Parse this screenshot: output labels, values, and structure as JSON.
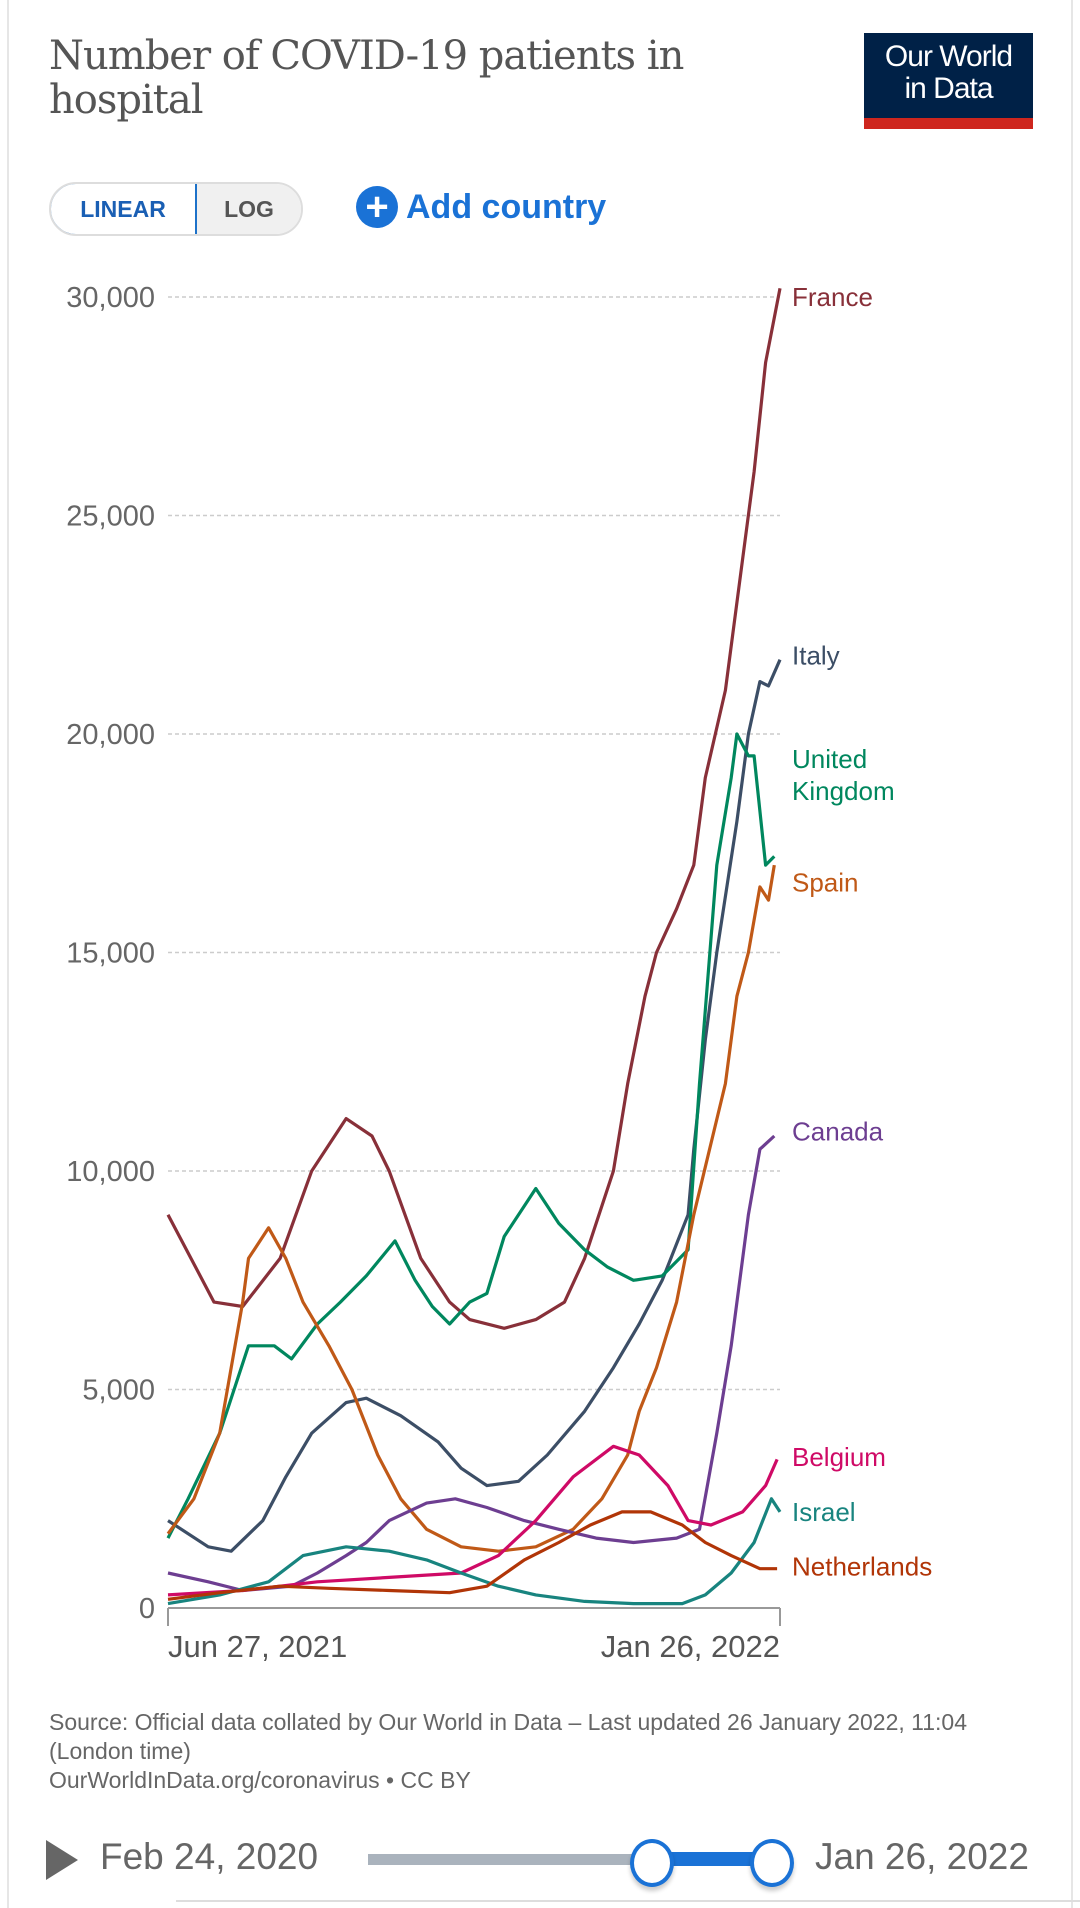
{
  "header": {
    "title": "Number of COVID-19 patients in hospital",
    "logo_line1": "Our World",
    "logo_line2": "in Data"
  },
  "controls": {
    "linear_label": "LINEAR",
    "log_label": "LOG",
    "add_country_label": "Add country",
    "add_icon": "plus-circle-icon"
  },
  "footer": {
    "source": "Source: Official data collated by Our World in Data – Last updated 26 January 2022, 11:04 (London time)",
    "license": "OurWorldInData.org/coronavirus • CC BY"
  },
  "timeline": {
    "start_date": "Feb 24, 2020",
    "end_date": "Jan 26, 2022",
    "play_icon": "play-icon"
  },
  "chart_data": {
    "type": "line",
    "title": "Number of COVID-19 patients in hospital",
    "xlabel": "",
    "ylabel": "",
    "x_unit": "days since Jun 27, 2021",
    "xlim": [
      0,
      213
    ],
    "ylim": [
      0,
      30000
    ],
    "yticks": [
      0,
      5000,
      10000,
      15000,
      20000,
      25000,
      30000
    ],
    "ytick_labels": [
      "0",
      "5,000",
      "10,000",
      "15,000",
      "20,000",
      "25,000",
      "30,000"
    ],
    "xtick_labels": [
      "Jun 27, 2021",
      "Jan 26, 2022"
    ],
    "grid": "horizontal dashed",
    "legend": "inline-right",
    "series": [
      {
        "name": "France",
        "color": "#883039",
        "points": [
          [
            0,
            9000
          ],
          [
            16,
            7000
          ],
          [
            26,
            6900
          ],
          [
            39,
            8000
          ],
          [
            50,
            10000
          ],
          [
            62,
            11200
          ],
          [
            71,
            10800
          ],
          [
            77,
            10000
          ],
          [
            88,
            8000
          ],
          [
            98,
            7000
          ],
          [
            105,
            6600
          ],
          [
            117,
            6400
          ],
          [
            128,
            6600
          ],
          [
            138,
            7000
          ],
          [
            145,
            8000
          ],
          [
            155,
            10000
          ],
          [
            160,
            12000
          ],
          [
            166,
            14000
          ],
          [
            170,
            15000
          ],
          [
            177,
            16000
          ],
          [
            183,
            17000
          ],
          [
            187,
            19000
          ],
          [
            194,
            21000
          ],
          [
            200,
            24000
          ],
          [
            204,
            26000
          ],
          [
            208,
            28500
          ],
          [
            213,
            30200
          ]
        ]
      },
      {
        "name": "Italy",
        "color": "#3c4e66",
        "points": [
          [
            0,
            2000
          ],
          [
            14,
            1400
          ],
          [
            22,
            1300
          ],
          [
            33,
            2000
          ],
          [
            41,
            3000
          ],
          [
            50,
            4000
          ],
          [
            62,
            4700
          ],
          [
            69,
            4800
          ],
          [
            81,
            4400
          ],
          [
            94,
            3800
          ],
          [
            102,
            3200
          ],
          [
            111,
            2800
          ],
          [
            122,
            2900
          ],
          [
            132,
            3500
          ],
          [
            145,
            4500
          ],
          [
            155,
            5500
          ],
          [
            164,
            6500
          ],
          [
            172,
            7500
          ],
          [
            181,
            9000
          ],
          [
            183,
            10500
          ],
          [
            187,
            13000
          ],
          [
            191,
            15000
          ],
          [
            198,
            18000
          ],
          [
            202,
            20000
          ],
          [
            206,
            21200
          ],
          [
            209,
            21100
          ],
          [
            213,
            21700
          ]
        ]
      },
      {
        "name": "United Kingdom",
        "color": "#00875e",
        "points": [
          [
            0,
            1600
          ],
          [
            7,
            2500
          ],
          [
            18,
            4000
          ],
          [
            28,
            6000
          ],
          [
            37,
            6000
          ],
          [
            43,
            5700
          ],
          [
            52,
            6500
          ],
          [
            60,
            7000
          ],
          [
            69,
            7600
          ],
          [
            79,
            8400
          ],
          [
            86,
            7500
          ],
          [
            92,
            6900
          ],
          [
            98,
            6500
          ],
          [
            105,
            7000
          ],
          [
            111,
            7200
          ],
          [
            117,
            8500
          ],
          [
            124,
            9200
          ],
          [
            128,
            9600
          ],
          [
            136,
            8800
          ],
          [
            145,
            8200
          ],
          [
            153,
            7800
          ],
          [
            162,
            7500
          ],
          [
            172,
            7600
          ],
          [
            181,
            8200
          ],
          [
            185,
            12000
          ],
          [
            191,
            17000
          ],
          [
            196,
            19000
          ],
          [
            198,
            20000
          ],
          [
            202,
            19500
          ],
          [
            204,
            19500
          ],
          [
            208,
            17000
          ],
          [
            211,
            17200
          ]
        ]
      },
      {
        "name": "Spain",
        "color": "#c05917",
        "points": [
          [
            0,
            1700
          ],
          [
            9,
            2500
          ],
          [
            18,
            4000
          ],
          [
            26,
            7000
          ],
          [
            28,
            8000
          ],
          [
            35,
            8700
          ],
          [
            41,
            8000
          ],
          [
            47,
            7000
          ],
          [
            56,
            6000
          ],
          [
            64,
            5000
          ],
          [
            73,
            3500
          ],
          [
            81,
            2500
          ],
          [
            90,
            1800
          ],
          [
            102,
            1400
          ],
          [
            115,
            1300
          ],
          [
            128,
            1400
          ],
          [
            141,
            1800
          ],
          [
            151,
            2500
          ],
          [
            160,
            3500
          ],
          [
            164,
            4500
          ],
          [
            170,
            5500
          ],
          [
            177,
            7000
          ],
          [
            183,
            9000
          ],
          [
            194,
            12000
          ],
          [
            198,
            14000
          ],
          [
            202,
            15000
          ],
          [
            206,
            16500
          ],
          [
            209,
            16200
          ],
          [
            211,
            17000
          ]
        ]
      },
      {
        "name": "Canada",
        "color": "#6d3e91",
        "points": [
          [
            0,
            800
          ],
          [
            14,
            600
          ],
          [
            26,
            400
          ],
          [
            43,
            500
          ],
          [
            52,
            800
          ],
          [
            62,
            1200
          ],
          [
            69,
            1500
          ],
          [
            77,
            2000
          ],
          [
            90,
            2400
          ],
          [
            100,
            2500
          ],
          [
            111,
            2300
          ],
          [
            124,
            2000
          ],
          [
            136,
            1800
          ],
          [
            149,
            1600
          ],
          [
            162,
            1500
          ],
          [
            177,
            1600
          ],
          [
            185,
            1800
          ],
          [
            191,
            4000
          ],
          [
            196,
            6000
          ],
          [
            202,
            9000
          ],
          [
            206,
            10500
          ],
          [
            211,
            10800
          ]
        ]
      },
      {
        "name": "Belgium",
        "color": "#cf0a66",
        "points": [
          [
            0,
            300
          ],
          [
            26,
            400
          ],
          [
            52,
            600
          ],
          [
            77,
            700
          ],
          [
            102,
            800
          ],
          [
            115,
            1200
          ],
          [
            128,
            2000
          ],
          [
            141,
            3000
          ],
          [
            155,
            3700
          ],
          [
            164,
            3500
          ],
          [
            174,
            2800
          ],
          [
            181,
            2000
          ],
          [
            189,
            1900
          ],
          [
            200,
            2200
          ],
          [
            208,
            2800
          ],
          [
            212,
            3400
          ]
        ]
      },
      {
        "name": "Israel",
        "color": "#18847f",
        "points": [
          [
            0,
            100
          ],
          [
            18,
            300
          ],
          [
            35,
            600
          ],
          [
            47,
            1200
          ],
          [
            62,
            1400
          ],
          [
            77,
            1300
          ],
          [
            90,
            1100
          ],
          [
            102,
            800
          ],
          [
            115,
            500
          ],
          [
            128,
            300
          ],
          [
            145,
            150
          ],
          [
            162,
            100
          ],
          [
            179,
            100
          ],
          [
            187,
            300
          ],
          [
            196,
            800
          ],
          [
            204,
            1500
          ],
          [
            210,
            2500
          ],
          [
            213,
            2200
          ]
        ]
      },
      {
        "name": "Netherlands",
        "color": "#b13507",
        "points": [
          [
            0,
            200
          ],
          [
            18,
            350
          ],
          [
            39,
            500
          ],
          [
            56,
            450
          ],
          [
            77,
            400
          ],
          [
            98,
            350
          ],
          [
            111,
            500
          ],
          [
            124,
            1100
          ],
          [
            136,
            1500
          ],
          [
            147,
            1900
          ],
          [
            158,
            2200
          ],
          [
            168,
            2200
          ],
          [
            179,
            1900
          ],
          [
            187,
            1500
          ],
          [
            196,
            1200
          ],
          [
            206,
            900
          ],
          [
            212,
            900
          ]
        ]
      }
    ]
  }
}
